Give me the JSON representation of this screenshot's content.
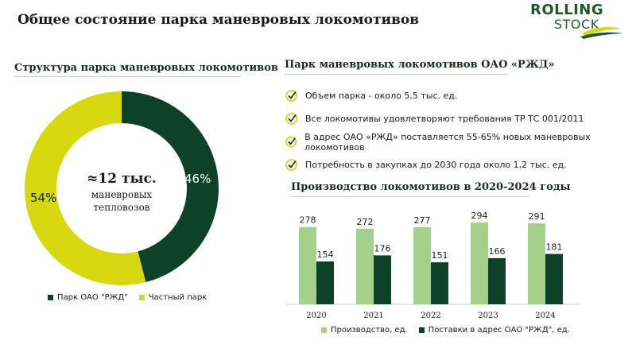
{
  "header": {
    "title": "Общее состояние парка маневровых локомотивов",
    "logo_line1": "ROLLING",
    "logo_line2": "STOCK"
  },
  "left": {
    "title": "Структура парка маневровых локомотивов",
    "center_big": "≈12 тыс.",
    "center_line1": "маневровых",
    "center_line2": "тепловозов"
  },
  "right": {
    "title": "Парк маневровых локомотивов ОАО «РЖД»",
    "bullets": [
      "Объем парка - около 5,5 тыс. ед.",
      "Все локомотивы удовлетворяют требования ТР ТС 001/2011",
      "В адрес ОАО «РЖД» поставляется 55-65% новых маневровых локомотивов",
      "Потребность в закупках до 2030 года около 1,2 тыс. ед."
    ],
    "prod_title": "Производство локомотивов в 2020-2024 годы"
  },
  "colors": {
    "dark_green": "#0d4229",
    "yellow": "#d6d90f",
    "light_green": "#a5d08a",
    "logo_green": "#1c5a2c"
  },
  "chart_data": [
    {
      "type": "pie",
      "labels": [
        "Парк ОАО \"РЖД\"",
        "Частный парк"
      ],
      "values": [
        46,
        54
      ],
      "value_labels": [
        "46%",
        "54%"
      ],
      "colors": [
        "#0d4229",
        "#d6d90f"
      ],
      "legend": "bottom"
    },
    {
      "type": "bar",
      "categories": [
        "2020",
        "2021",
        "2022",
        "2023",
        "2024"
      ],
      "series": [
        {
          "name": "Производство, ед.",
          "values": [
            278,
            272,
            277,
            294,
            291
          ],
          "color": "#a5d08a"
        },
        {
          "name": "Поставки в адрес ОАО \"РЖД\", ед.",
          "values": [
            154,
            176,
            151,
            166,
            181
          ],
          "color": "#0d4229"
        }
      ],
      "ylim": [
        0,
        300
      ],
      "grid": false,
      "legend": "bottom"
    }
  ]
}
